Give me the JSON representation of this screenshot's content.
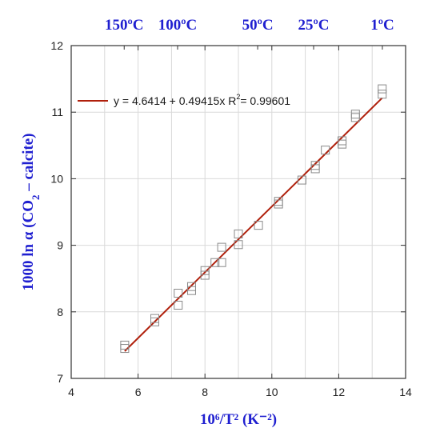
{
  "chart_data": {
    "type": "scatter",
    "xlabel": "10⁶/T² (K⁻²)",
    "ylabel_parts": [
      "1000 ln α (CO",
      "2",
      " – calcite)"
    ],
    "xlim": [
      4,
      14
    ],
    "ylim": [
      7,
      12
    ],
    "x_ticks": [
      "4",
      "6",
      "8",
      "10",
      "12",
      "14"
    ],
    "y_ticks": [
      "7",
      "8",
      "9",
      "10",
      "11",
      "12"
    ],
    "x_ticks_minor": [
      5,
      7,
      9,
      11,
      13
    ],
    "top_axis": {
      "labels": [
        "150ºC",
        "100ºC",
        "50ºC",
        "25ºC",
        "1ºC"
      ],
      "temperatures_c": [
        150,
        100,
        50,
        25,
        1
      ]
    },
    "grid": true,
    "legend": {
      "placement": "top-left",
      "text": "y = 4.6414 + 0.49415x   R",
      "sup": "2",
      "suffix": "= 0.99601"
    },
    "fit": {
      "intercept": 4.6414,
      "slope": 0.49415,
      "x_range": [
        5.6,
        13.3
      ]
    },
    "series": [
      {
        "x": [
          5.6,
          5.6,
          6.5,
          6.5,
          7.2,
          7.2,
          7.6,
          7.6,
          8.0,
          8.0,
          8.3,
          8.5,
          8.5,
          9.0,
          9.0,
          9.6,
          10.2,
          10.2,
          10.9,
          11.3,
          11.3,
          11.6,
          12.1,
          12.1,
          12.5,
          12.5,
          13.3,
          13.3
        ],
        "y": [
          7.45,
          7.5,
          7.85,
          7.9,
          8.1,
          8.28,
          8.32,
          8.38,
          8.55,
          8.62,
          8.74,
          8.74,
          8.97,
          9.01,
          9.17,
          9.3,
          9.62,
          9.66,
          9.98,
          10.15,
          10.2,
          10.43,
          10.52,
          10.57,
          10.92,
          10.97,
          11.27,
          11.35
        ]
      }
    ],
    "colors": {
      "fit_line": "#b0200c",
      "marker": "#8a8a8a",
      "grid": "#d9d9d9",
      "axis_title": "#1f1fd0"
    }
  }
}
